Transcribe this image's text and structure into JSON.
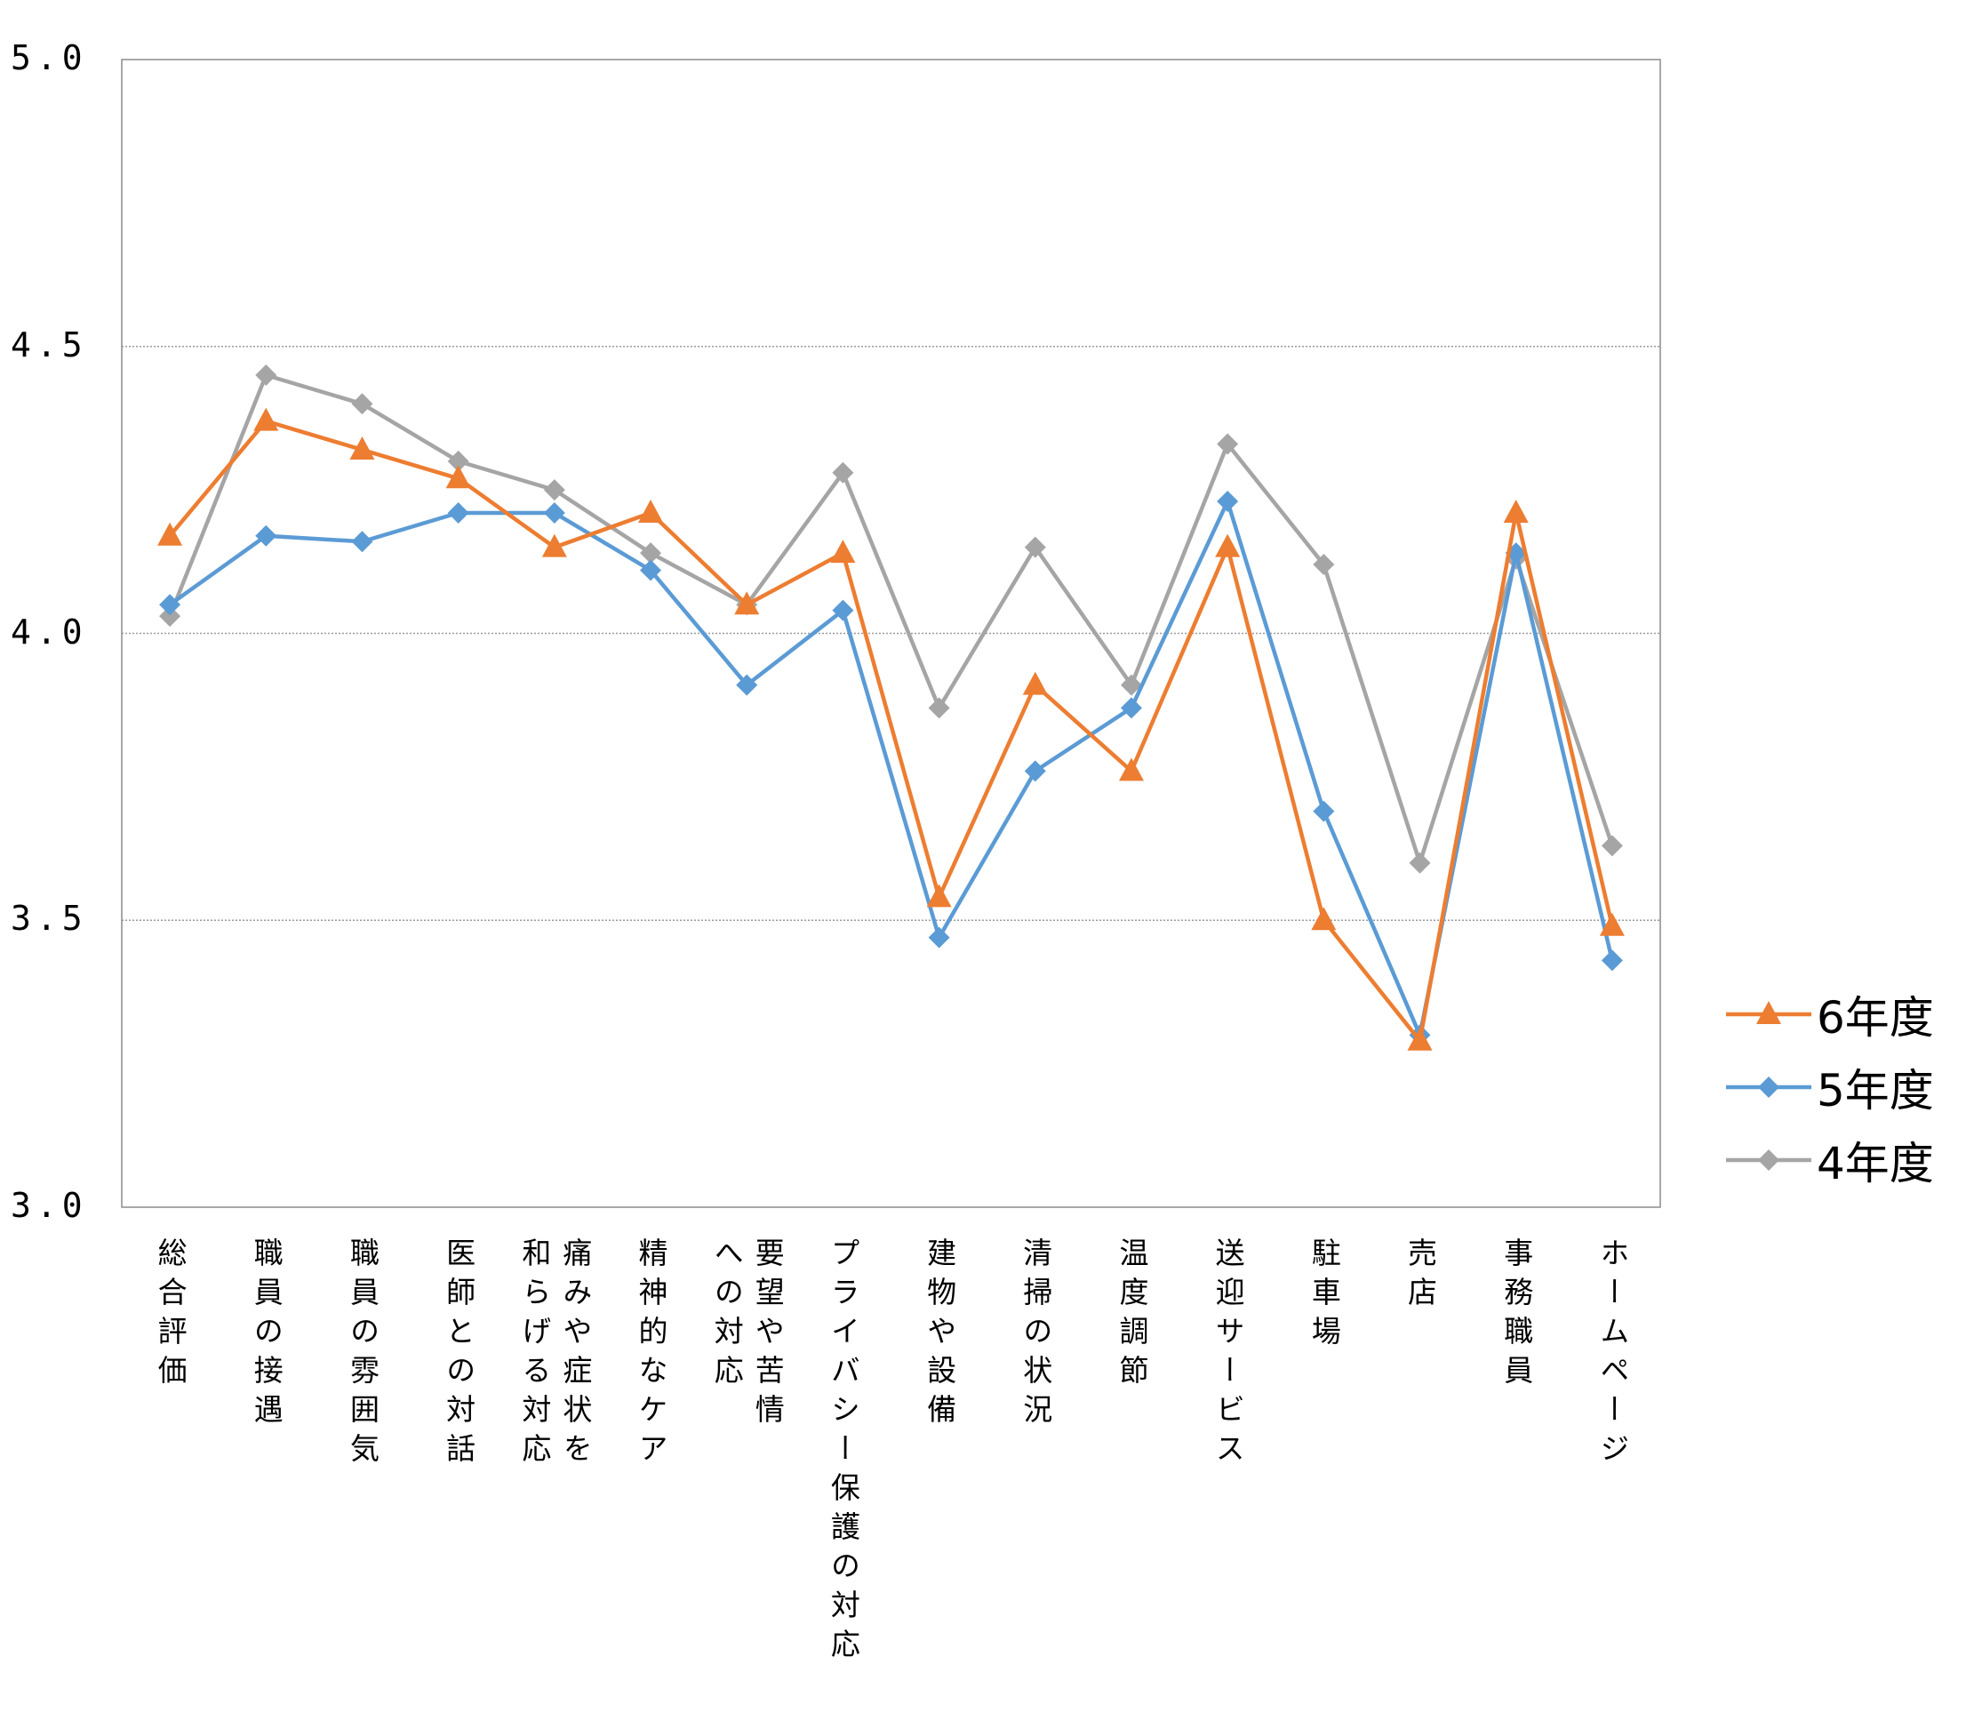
{
  "chart_data": {
    "type": "line",
    "title": "",
    "xlabel": "",
    "ylabel": "",
    "ylim": [
      3.0,
      5.0
    ],
    "yticks": [
      "5.0",
      "4.5",
      "4.0",
      "3.5",
      "3.0"
    ],
    "ytick_values": [
      5.0,
      4.5,
      4.0,
      3.5,
      3.0
    ],
    "grid": true,
    "legend_position": "right",
    "categories": [
      "総合評価",
      "職員の接遇",
      "職員の雰囲気",
      "医師との対話",
      "痛みや症状を\n和らげる対応",
      "精神的なケア",
      "要望や苦情\nへの対応",
      "プライバシー保護の対応",
      "建物や設備",
      "清掃の状況",
      "温度調節",
      "送迎サービス",
      "駐車場",
      "売店",
      "事務職員",
      "ホームページ"
    ],
    "series": [
      {
        "name": "6年度",
        "color": "#ED7D31",
        "marker": "triangle",
        "values": [
          4.17,
          4.37,
          4.32,
          4.27,
          4.15,
          4.21,
          4.05,
          4.14,
          3.54,
          3.91,
          3.76,
          4.15,
          3.5,
          3.29,
          4.21,
          3.49
        ]
      },
      {
        "name": "5年度",
        "color": "#5B9BD5",
        "marker": "diamond",
        "values": [
          4.05,
          4.17,
          4.16,
          4.21,
          4.21,
          4.11,
          3.91,
          4.04,
          3.47,
          3.76,
          3.87,
          4.23,
          3.69,
          3.3,
          4.14,
          3.43
        ]
      },
      {
        "name": "4年度",
        "color": "#A5A5A5",
        "marker": "diamond",
        "values": [
          4.03,
          4.45,
          4.4,
          4.3,
          4.25,
          4.14,
          4.05,
          4.28,
          3.87,
          4.15,
          3.91,
          4.33,
          4.12,
          3.6,
          4.13,
          3.63
        ]
      }
    ]
  }
}
